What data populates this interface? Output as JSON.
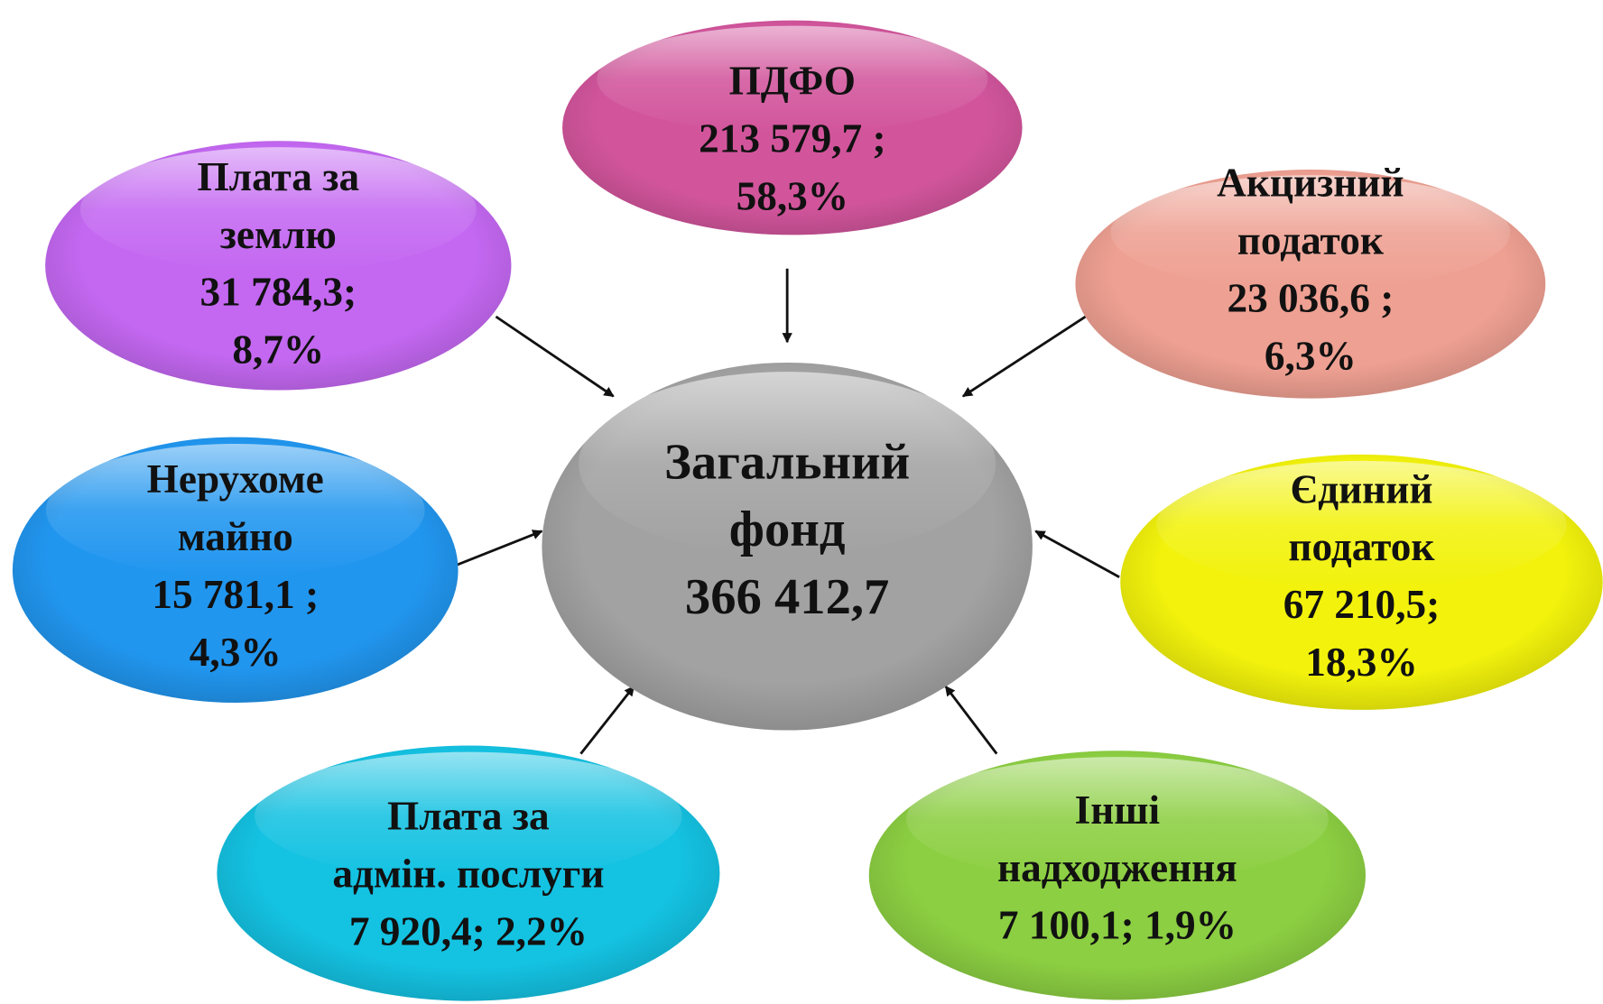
{
  "center": {
    "lines": [
      "Загальний",
      "фонд",
      "366 412,7"
    ]
  },
  "nodes": [
    {
      "lines": [
        "ПДФО",
        "213 579,7 ;",
        "58,3%"
      ]
    },
    {
      "lines": [
        "Плата за",
        "землю",
        "31 784,3;",
        "8,7%"
      ]
    },
    {
      "lines": [
        "Акцизний",
        "податок",
        "23 036,6 ;",
        "6,3%"
      ]
    },
    {
      "lines": [
        "Нерухоме",
        "майно",
        "15 781,1 ;",
        "4,3%"
      ]
    },
    {
      "lines": [
        "Єдиний",
        "податок",
        "67 210,5;",
        "18,3%"
      ]
    },
    {
      "lines": [
        "Плата за",
        "адмін. послуги",
        "7 920,4; 2,2%"
      ]
    },
    {
      "lines": [
        "Інші",
        "надходження",
        "7 100,1; 1,9%"
      ]
    }
  ]
}
